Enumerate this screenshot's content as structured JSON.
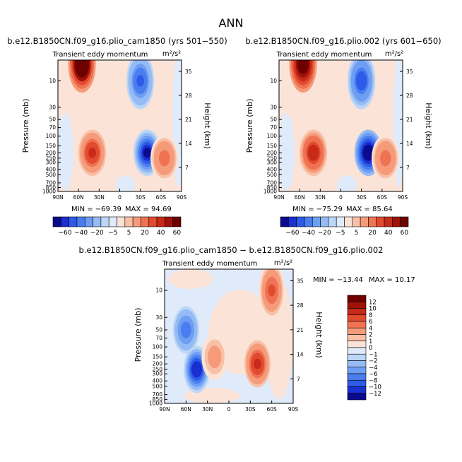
{
  "figure_title": "ANN",
  "chart_data": [
    {
      "type": "contour",
      "run_title": "b.e12.B1850CN.f09_g16.plio_cam1850 (yrs 501−550)",
      "variable": "Transient eddy momentum",
      "units": "m²/s²",
      "ylabel": "Pressure (mb)",
      "ylabel_right": "Height (km)",
      "x_ticks": [
        "90N",
        "60N",
        "30N",
        "0",
        "30S",
        "60S",
        "90S"
      ],
      "y_ticks": [
        "10",
        "30",
        "50",
        "70",
        "100",
        "150",
        "200",
        "250",
        "300",
        "400",
        "500",
        "700",
        "850",
        "1000"
      ],
      "height_ticks": [
        "35",
        "28",
        "21",
        "14",
        "7"
      ],
      "min_label": "MIN = −69.39",
      "max_label": "MAX =  94.69",
      "min": -69.39,
      "max": 94.69,
      "features": [
        {
          "lat": 55,
          "pressure_mb": 5,
          "value": 90
        },
        {
          "lat": -30,
          "pressure_mb": 10,
          "value": -45
        },
        {
          "lat": 40,
          "pressure_mb": 200,
          "value": 45
        },
        {
          "lat": -40,
          "pressure_mb": 200,
          "value": -65
        },
        {
          "lat": -65,
          "pressure_mb": 250,
          "value": 25
        }
      ]
    },
    {
      "type": "contour",
      "run_title": "b.e12.B1850CN.f09_g16.plio.002 (yrs 601−650)",
      "variable": "Transient eddy momentum",
      "units": "m²/s²",
      "ylabel": "Pressure (mb)",
      "ylabel_right": "Height (km)",
      "x_ticks": [
        "90N",
        "60N",
        "30N",
        "0",
        "30S",
        "60S",
        "90S"
      ],
      "y_ticks": [
        "10",
        "30",
        "50",
        "70",
        "100",
        "150",
        "200",
        "250",
        "300",
        "400",
        "500",
        "700",
        "850",
        "1000"
      ],
      "height_ticks": [
        "35",
        "28",
        "21",
        "14",
        "7"
      ],
      "min_label": "MIN = −75.29",
      "max_label": "MAX =  85.64",
      "min": -75.29,
      "max": 85.64,
      "features": [
        {
          "lat": 55,
          "pressure_mb": 5,
          "value": 82
        },
        {
          "lat": -30,
          "pressure_mb": 10,
          "value": -48
        },
        {
          "lat": 40,
          "pressure_mb": 200,
          "value": 48
        },
        {
          "lat": -40,
          "pressure_mb": 200,
          "value": -72
        },
        {
          "lat": -65,
          "pressure_mb": 250,
          "value": 25
        }
      ]
    },
    {
      "type": "contour",
      "run_title": "b.e12.B1850CN.f09_g16.plio_cam1850 − b.e12.B1850CN.f09_g16.plio.002",
      "variable": "Transient eddy momentum",
      "units": "m²/s²",
      "ylabel": "Pressure (mb)",
      "ylabel_right": "Height (km)",
      "x_ticks": [
        "90N",
        "60N",
        "30N",
        "0",
        "30S",
        "60S",
        "90S"
      ],
      "y_ticks": [
        "10",
        "30",
        "50",
        "70",
        "100",
        "150",
        "200",
        "250",
        "300",
        "400",
        "500",
        "700",
        "850",
        "1000"
      ],
      "height_ticks": [
        "35",
        "28",
        "21",
        "14",
        "7"
      ],
      "min_label": "MIN = −13.44",
      "max_label": "MAX =  10.17",
      "min": -13.44,
      "max": 10.17,
      "features": [
        {
          "lat": 60,
          "pressure_mb": 50,
          "value": -8
        },
        {
          "lat": 45,
          "pressure_mb": 250,
          "value": -12
        },
        {
          "lat": 20,
          "pressure_mb": 150,
          "value": 3
        },
        {
          "lat": -40,
          "pressure_mb": 200,
          "value": 9
        },
        {
          "lat": -60,
          "pressure_mb": 10,
          "value": 6
        }
      ]
    }
  ],
  "colorbar_abs": {
    "orientation": "horizontal",
    "labels": [
      "−60",
      "−40",
      "−20",
      "−5",
      "5",
      "20",
      "40",
      "60"
    ],
    "colors": [
      "#0a0a8c",
      "#1a2fcf",
      "#2d5be8",
      "#4a7ef0",
      "#6e9ef2",
      "#94bbf4",
      "#bcd6f6",
      "#dfeafa",
      "#fbe3d7",
      "#f8c0a6",
      "#f59b7a",
      "#ef7353",
      "#e24a30",
      "#c72a18",
      "#9e1208",
      "#6e0000"
    ]
  },
  "colorbar_diff": {
    "orientation": "vertical",
    "labels": [
      "12",
      "10",
      "8",
      "6",
      "4",
      "2",
      "1",
      "0",
      "−1",
      "−2",
      "−4",
      "−6",
      "−8",
      "−10",
      "−12"
    ],
    "colors": [
      "#6e0000",
      "#9e1208",
      "#c72a18",
      "#e24a30",
      "#ef7353",
      "#f59b7a",
      "#f8c0a6",
      "#fbe3d7",
      "#dfeafa",
      "#bcd6f6",
      "#94bbf4",
      "#6e9ef2",
      "#4a7ef0",
      "#2d5be8",
      "#1a2fcf",
      "#0a0a8c"
    ]
  }
}
